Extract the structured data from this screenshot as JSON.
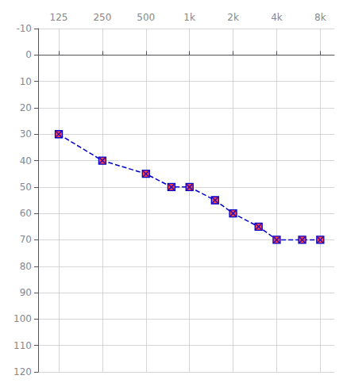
{
  "chart_data": {
    "type": "line",
    "x": [
      125,
      250,
      500,
      750,
      1000,
      1500,
      2000,
      3000,
      4000,
      6000,
      8000
    ],
    "values": [
      30,
      40,
      45,
      50,
      50,
      55,
      60,
      65,
      70,
      70,
      70
    ],
    "color": "#0000cc",
    "line_style": "dashed",
    "marker": "square",
    "log": "x",
    "xlim": [
      90,
      10000
    ],
    "xticks": [
      125,
      250,
      500,
      {
        "value": 1000,
        "label": "1k"
      },
      {
        "value": 2000,
        "label": "2k"
      },
      {
        "value": 4000,
        "label": "4k"
      },
      {
        "value": 8000,
        "label": "8k"
      }
    ],
    "ylim": [
      120,
      -10
    ],
    "yticks": [
      -10,
      0,
      10,
      20,
      30,
      40,
      50,
      60,
      70,
      80,
      90,
      100,
      110,
      120
    ],
    "grid": true
  }
}
